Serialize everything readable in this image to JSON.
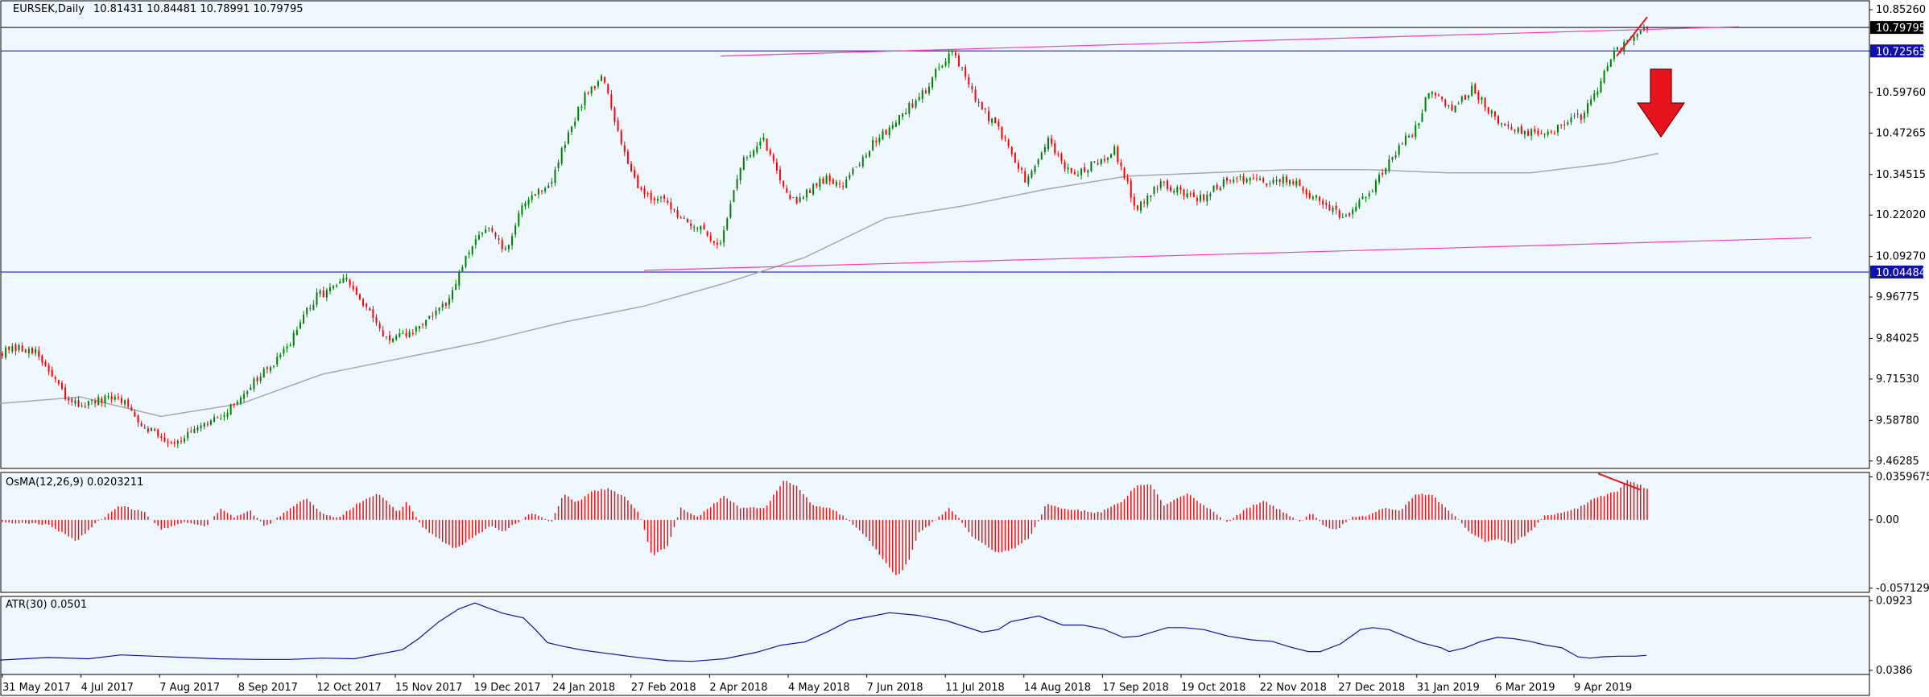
{
  "colors": {
    "background": "#f0f8ff",
    "frame": "#000000",
    "bull": "#008000",
    "bear": "#ff0000",
    "ma": "#a8a8a8",
    "hline": "#0000c0",
    "trend": "#ff3ab4",
    "arrow": "#e8141d",
    "atr": "#1010a0",
    "osma": "#ee1111",
    "marker_dark": "#000000",
    "marker_blue": "#1010b0"
  },
  "main_header": {
    "symbol": "EURSEK,Daily",
    "ohlc": "10.81431 10.84481 10.78991 10.79795"
  },
  "osma_header": "OsMA(12,26,9) 0.0203211",
  "atr_header": "ATR(30) 0.0501",
  "chart_data": {
    "type": "candlestick",
    "symbol": "EURSEK",
    "timeframe": "Daily",
    "y_ticks": [
      "10.85260",
      "10.72565",
      "10.59760",
      "10.47265",
      "10.34515",
      "10.22020",
      "10.09270",
      "9.96775",
      "9.84025",
      "9.71530",
      "9.58780",
      "9.46285"
    ],
    "ylim": [
      9.44,
      10.88
    ],
    "x_ticks": [
      "31 May 2017",
      "4 Jul 2017",
      "7 Aug 2017",
      "8 Sep 2017",
      "12 Oct 2017",
      "15 Nov 2017",
      "19 Dec 2017",
      "24 Jan 2018",
      "27 Feb 2018",
      "2 Apr 2018",
      "4 May 2018",
      "7 Jun 2018",
      "11 Jul 2018",
      "14 Aug 2018",
      "17 Sep 2018",
      "19 Oct 2018",
      "22 Nov 2018",
      "27 Dec 2018",
      "31 Jan 2019",
      "6 Mar 2019",
      "9 Apr 2019"
    ],
    "bars": 498,
    "close_anchors": [
      [
        0,
        9.8
      ],
      [
        20,
        9.81
      ],
      [
        35,
        9.72
      ],
      [
        45,
        9.64
      ],
      [
        60,
        9.64
      ],
      [
        80,
        9.66
      ],
      [
        95,
        9.58
      ],
      [
        115,
        9.52
      ],
      [
        135,
        9.56
      ],
      [
        155,
        9.62
      ],
      [
        170,
        9.7
      ],
      [
        190,
        9.78
      ],
      [
        205,
        9.9
      ],
      [
        215,
        9.97
      ],
      [
        235,
        10.02
      ],
      [
        250,
        9.92
      ],
      [
        265,
        9.83
      ],
      [
        280,
        9.86
      ],
      [
        290,
        9.9
      ],
      [
        305,
        9.95
      ],
      [
        315,
        10.07
      ],
      [
        330,
        10.19
      ],
      [
        345,
        10.1
      ],
      [
        355,
        10.26
      ],
      [
        375,
        10.32
      ],
      [
        385,
        10.45
      ],
      [
        398,
        10.59
      ],
      [
        410,
        10.65
      ],
      [
        420,
        10.48
      ],
      [
        435,
        10.3
      ],
      [
        455,
        10.25
      ],
      [
        475,
        10.18
      ],
      [
        490,
        10.13
      ],
      [
        505,
        10.38
      ],
      [
        520,
        10.45
      ],
      [
        540,
        10.26
      ],
      [
        560,
        10.33
      ],
      [
        575,
        10.32
      ],
      [
        595,
        10.44
      ],
      [
        610,
        10.51
      ],
      [
        630,
        10.6
      ],
      [
        640,
        10.68
      ],
      [
        650,
        10.73
      ],
      [
        665,
        10.57
      ],
      [
        680,
        10.49
      ],
      [
        700,
        10.32
      ],
      [
        715,
        10.45
      ],
      [
        730,
        10.34
      ],
      [
        750,
        10.39
      ],
      [
        760,
        10.42
      ],
      [
        775,
        10.24
      ],
      [
        790,
        10.32
      ],
      [
        805,
        10.29
      ],
      [
        820,
        10.27
      ],
      [
        840,
        10.34
      ],
      [
        860,
        10.32
      ],
      [
        880,
        10.33
      ],
      [
        900,
        10.26
      ],
      [
        915,
        10.21
      ],
      [
        935,
        10.29
      ],
      [
        955,
        10.44
      ],
      [
        965,
        10.48
      ],
      [
        975,
        10.6
      ],
      [
        990,
        10.55
      ],
      [
        1005,
        10.61
      ],
      [
        1020,
        10.52
      ],
      [
        1040,
        10.47
      ],
      [
        1060,
        10.48
      ],
      [
        1080,
        10.53
      ],
      [
        1090,
        10.61
      ],
      [
        1100,
        10.71
      ],
      [
        1110,
        10.75
      ],
      [
        1120,
        10.79
      ],
      [
        1124,
        10.8
      ]
    ],
    "last_price": 10.79795,
    "horizontal_levels": [
      10.79795,
      10.72565,
      10.04484
    ],
    "price_labels": [
      "10.79795",
      "10.72565",
      "10.04484"
    ],
    "moving_average_anchors": [
      [
        0,
        9.64
      ],
      [
        100,
        9.66
      ],
      [
        200,
        9.6
      ],
      [
        300,
        9.64
      ],
      [
        400,
        9.73
      ],
      [
        500,
        9.78
      ],
      [
        600,
        9.83
      ],
      [
        700,
        9.89
      ],
      [
        800,
        9.94
      ],
      [
        900,
        10.01
      ],
      [
        1000,
        10.09
      ],
      [
        1100,
        10.21
      ],
      [
        1200,
        10.25
      ],
      [
        1300,
        10.3
      ],
      [
        1400,
        10.34
      ],
      [
        1500,
        10.35
      ],
      [
        1600,
        10.36
      ],
      [
        1700,
        10.36
      ],
      [
        1800,
        10.35
      ],
      [
        1900,
        10.35
      ],
      [
        2000,
        10.38
      ],
      [
        2060,
        10.41
      ]
    ],
    "trendlines": [
      {
        "from": [
          895,
          10.71
        ],
        "to": [
          2160,
          10.8
        ]
      },
      {
        "from": [
          800,
          10.05
        ],
        "to": [
          2250,
          10.15
        ]
      }
    ],
    "resistance_marker": {
      "from": [
        2008,
        10.71
      ],
      "to": [
        2046,
        10.83
      ]
    },
    "signal_arrow": "down",
    "osma": {
      "label": "OsMA(12,26,9)",
      "value": 0.0203211,
      "y_ticks": [
        "0.0359675",
        "0.00",
        "-0.0571299"
      ],
      "ylim": [
        -0.0606,
        0.0396
      ],
      "anchors": [
        [
          0,
          -0.002
        ],
        [
          60,
          -0.004
        ],
        [
          95,
          -0.018
        ],
        [
          120,
          -0.002
        ],
        [
          150,
          0.012
        ],
        [
          180,
          0.006
        ],
        [
          200,
          -0.008
        ],
        [
          230,
          -0.002
        ],
        [
          255,
          -0.006
        ],
        [
          275,
          0.01
        ],
        [
          290,
          0.002
        ],
        [
          310,
          0.008
        ],
        [
          330,
          -0.006
        ],
        [
          360,
          0.01
        ],
        [
          380,
          0.018
        ],
        [
          400,
          0.005
        ],
        [
          420,
          0.002
        ],
        [
          445,
          0.014
        ],
        [
          470,
          0.022
        ],
        [
          495,
          0.006
        ],
        [
          505,
          0.016
        ],
        [
          525,
          -0.006
        ],
        [
          545,
          -0.016
        ],
        [
          565,
          -0.024
        ],
        [
          590,
          -0.014
        ],
        [
          610,
          -0.005
        ],
        [
          625,
          -0.01
        ],
        [
          660,
          0.006
        ],
        [
          685,
          -0.002
        ],
        [
          700,
          0.022
        ],
        [
          715,
          0.014
        ],
        [
          735,
          0.024
        ],
        [
          755,
          0.026
        ],
        [
          775,
          0.02
        ],
        [
          795,
          0.004
        ],
        [
          810,
          -0.03
        ],
        [
          830,
          -0.022
        ],
        [
          845,
          0.01
        ],
        [
          865,
          0.002
        ],
        [
          900,
          0.02
        ],
        [
          920,
          0.01
        ],
        [
          950,
          0.01
        ],
        [
          975,
          0.034
        ],
        [
          990,
          0.028
        ],
        [
          1010,
          0.012
        ],
        [
          1030,
          0.01
        ],
        [
          1050,
          0.002
        ],
        [
          1060,
          -0.004
        ],
        [
          1080,
          -0.018
        ],
        [
          1100,
          -0.036
        ],
        [
          1115,
          -0.048
        ],
        [
          1130,
          -0.032
        ],
        [
          1140,
          -0.012
        ],
        [
          1155,
          -0.004
        ],
        [
          1165,
          0.002
        ],
        [
          1180,
          0.01
        ],
        [
          1190,
          0.002
        ],
        [
          1205,
          -0.012
        ],
        [
          1220,
          -0.02
        ],
        [
          1240,
          -0.028
        ],
        [
          1260,
          -0.024
        ],
        [
          1280,
          -0.014
        ],
        [
          1300,
          0.014
        ],
        [
          1315,
          0.01
        ],
        [
          1340,
          0.008
        ],
        [
          1365,
          0.006
        ],
        [
          1395,
          0.016
        ],
        [
          1410,
          0.028
        ],
        [
          1430,
          0.03
        ],
        [
          1445,
          0.012
        ],
        [
          1475,
          0.022
        ],
        [
          1500,
          0.01
        ],
        [
          1525,
          -0.002
        ],
        [
          1550,
          0.01
        ],
        [
          1570,
          0.016
        ],
        [
          1595,
          0.006
        ],
        [
          1615,
          -0.002
        ],
        [
          1630,
          0.006
        ],
        [
          1645,
          -0.006
        ],
        [
          1660,
          -0.008
        ],
        [
          1680,
          0.002
        ],
        [
          1700,
          0.004
        ],
        [
          1720,
          0.01
        ],
        [
          1740,
          0.008
        ],
        [
          1760,
          0.022
        ],
        [
          1780,
          0.02
        ],
        [
          1795,
          0.01
        ],
        [
          1810,
          0.002
        ],
        [
          1825,
          -0.01
        ],
        [
          1845,
          -0.018
        ],
        [
          1860,
          -0.016
        ],
        [
          1880,
          -0.02
        ],
        [
          1900,
          -0.01
        ],
        [
          1920,
          0.004
        ],
        [
          1940,
          0.006
        ],
        [
          1960,
          0.01
        ],
        [
          1980,
          0.018
        ],
        [
          2000,
          0.022
        ],
        [
          2010,
          0.024
        ],
        [
          2020,
          0.034
        ],
        [
          2040,
          0.028
        ],
        [
          2060,
          0.02
        ]
      ],
      "divergence_line": {
        "from": [
          1985,
          0.0387
        ],
        "to": [
          2038,
          0.025
        ]
      }
    },
    "atr": {
      "label": "ATR(30)",
      "value": 0.0501,
      "y_ticks": [
        "0.0923",
        "0.0386"
      ],
      "ylim": [
        0.0354,
        0.0956
      ],
      "anchors": [
        [
          0,
          0.0465
        ],
        [
          60,
          0.0485
        ],
        [
          110,
          0.0475
        ],
        [
          150,
          0.0505
        ],
        [
          190,
          0.0495
        ],
        [
          230,
          0.0485
        ],
        [
          270,
          0.0475
        ],
        [
          320,
          0.047
        ],
        [
          360,
          0.047
        ],
        [
          400,
          0.048
        ],
        [
          440,
          0.0475
        ],
        [
          470,
          0.051
        ],
        [
          500,
          0.0545
        ],
        [
          520,
          0.063
        ],
        [
          545,
          0.076
        ],
        [
          570,
          0.086
        ],
        [
          590,
          0.0905
        ],
        [
          605,
          0.087
        ],
        [
          625,
          0.0825
        ],
        [
          650,
          0.079
        ],
        [
          665,
          0.07
        ],
        [
          680,
          0.06
        ],
        [
          700,
          0.057
        ],
        [
          725,
          0.054
        ],
        [
          750,
          0.052
        ],
        [
          780,
          0.0495
        ],
        [
          800,
          0.048
        ],
        [
          830,
          0.046
        ],
        [
          860,
          0.0455
        ],
        [
          900,
          0.0475
        ],
        [
          940,
          0.0525
        ],
        [
          970,
          0.058
        ],
        [
          1000,
          0.0605
        ],
        [
          1030,
          0.069
        ],
        [
          1055,
          0.077
        ],
        [
          1080,
          0.08
        ],
        [
          1105,
          0.083
        ],
        [
          1140,
          0.081
        ],
        [
          1175,
          0.077
        ],
        [
          1200,
          0.072
        ],
        [
          1220,
          0.068
        ],
        [
          1240,
          0.07
        ],
        [
          1255,
          0.076
        ],
        [
          1290,
          0.0805
        ],
        [
          1320,
          0.0735
        ],
        [
          1345,
          0.0735
        ],
        [
          1370,
          0.0705
        ],
        [
          1395,
          0.064
        ],
        [
          1415,
          0.065
        ],
        [
          1450,
          0.0715
        ],
        [
          1470,
          0.0715
        ],
        [
          1495,
          0.07
        ],
        [
          1525,
          0.065
        ],
        [
          1555,
          0.062
        ],
        [
          1580,
          0.061
        ],
        [
          1600,
          0.057
        ],
        [
          1625,
          0.053
        ],
        [
          1640,
          0.053
        ],
        [
          1665,
          0.059
        ],
        [
          1690,
          0.07
        ],
        [
          1705,
          0.0715
        ],
        [
          1725,
          0.07
        ],
        [
          1745,
          0.065
        ],
        [
          1765,
          0.06
        ],
        [
          1790,
          0.056
        ],
        [
          1800,
          0.053
        ],
        [
          1820,
          0.056
        ],
        [
          1840,
          0.061
        ],
        [
          1860,
          0.064
        ],
        [
          1880,
          0.063
        ],
        [
          1900,
          0.061
        ],
        [
          1920,
          0.058
        ],
        [
          1940,
          0.056
        ],
        [
          1960,
          0.049
        ],
        [
          1975,
          0.048
        ],
        [
          1990,
          0.049
        ],
        [
          2010,
          0.0495
        ],
        [
          2030,
          0.0495
        ],
        [
          2045,
          0.0501
        ]
      ]
    }
  }
}
